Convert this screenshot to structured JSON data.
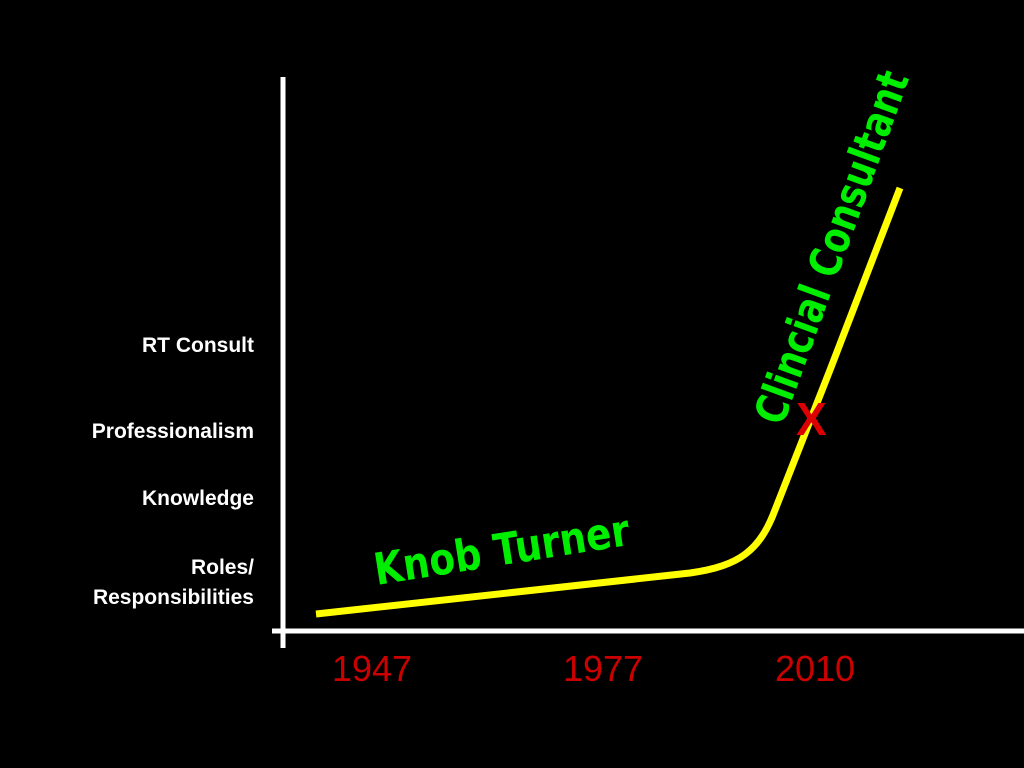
{
  "y_axis": {
    "labels": [
      "RT Consult",
      "Professionalism",
      "Knowledge",
      "Roles/\nResponsibilities"
    ]
  },
  "x_axis": {
    "labels": [
      "1947",
      "1977",
      "2010"
    ]
  },
  "curve_labels": {
    "low": "Knob Turner",
    "high": "Clincial Consultant"
  },
  "marker": "X"
}
